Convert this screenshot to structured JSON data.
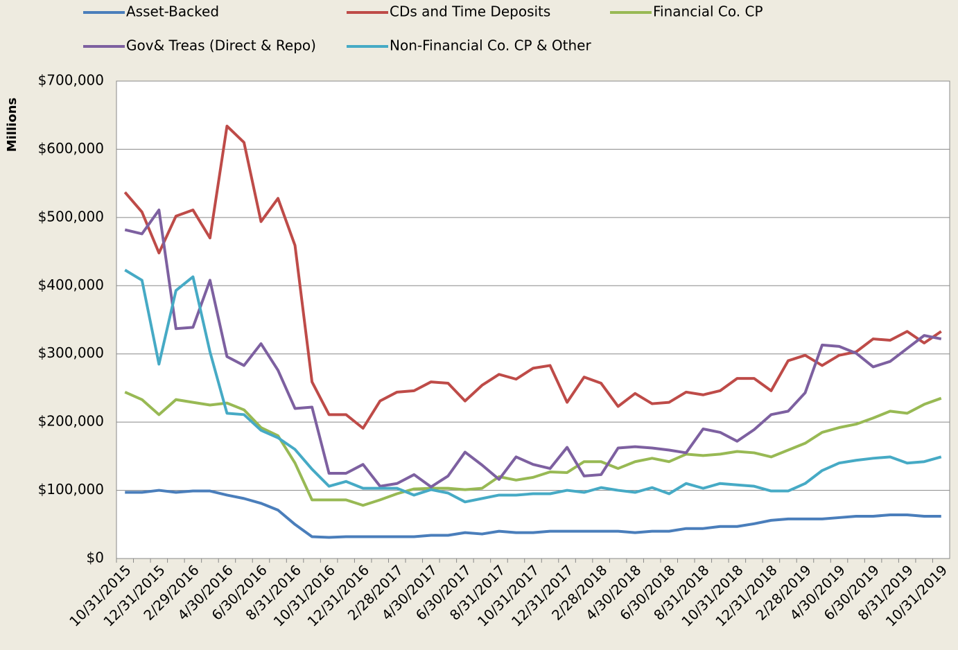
{
  "chart_data": {
    "type": "line",
    "y_label": "Millions",
    "categories": [
      "10/31/2015",
      null,
      "12/31/2015",
      null,
      "2/29/2016",
      null,
      "4/30/2016",
      null,
      "6/30/2016",
      null,
      "8/31/2016",
      null,
      "10/31/2016",
      null,
      "12/31/2016",
      null,
      "2/28/2017",
      null,
      "4/30/2017",
      null,
      "6/30/2017",
      null,
      "8/31/2017",
      null,
      "10/31/2017",
      null,
      "12/31/2017",
      null,
      "2/28/2018",
      null,
      "4/30/2018",
      null,
      "6/30/2018",
      null,
      "8/31/2018",
      null,
      "10/31/2018",
      null,
      "12/31/2018",
      null,
      "2/28/2019",
      null,
      "4/30/2019",
      null,
      "6/30/2019",
      null,
      "8/31/2019",
      null,
      "10/31/2019"
    ],
    "series": [
      {
        "name": "Asset-Backed",
        "color": "#4a7ebb",
        "values": [
          97000,
          97000,
          100000,
          97000,
          99000,
          99000,
          93000,
          88000,
          81000,
          71000,
          50000,
          32000,
          31000,
          32000,
          32000,
          32000,
          32000,
          32000,
          34000,
          34000,
          38000,
          36000,
          40000,
          38000,
          38000,
          40000,
          40000,
          40000,
          40000,
          40000,
          38000,
          40000,
          40000,
          44000,
          44000,
          47000,
          47000,
          51000,
          56000,
          58000,
          58000,
          58000,
          60000,
          62000,
          62000,
          64000,
          64000,
          62000,
          62000
        ]
      },
      {
        "name": "CDs and Time Deposits",
        "color": "#be4b48",
        "values": [
          537000,
          508000,
          448000,
          502000,
          511000,
          470000,
          634000,
          610000,
          494000,
          528000,
          459000,
          259000,
          211000,
          211000,
          191000,
          231000,
          244000,
          246000,
          259000,
          257000,
          231000,
          254000,
          270000,
          263000,
          279000,
          283000,
          229000,
          266000,
          257000,
          223000,
          242000,
          227000,
          229000,
          244000,
          240000,
          246000,
          264000,
          264000,
          246000,
          290000,
          298000,
          283000,
          298000,
          303000,
          322000,
          320000,
          333000,
          316000,
          333000
        ]
      },
      {
        "name": "Financial Co. CP",
        "color": "#98b954",
        "values": [
          244000,
          233000,
          211000,
          233000,
          229000,
          225000,
          228000,
          218000,
          192000,
          180000,
          140000,
          86000,
          86000,
          86000,
          78000,
          86000,
          95000,
          102000,
          103000,
          103000,
          101000,
          103000,
          120000,
          115000,
          119000,
          127000,
          126000,
          142000,
          142000,
          132000,
          142000,
          147000,
          142000,
          153000,
          151000,
          153000,
          157000,
          155000,
          149000,
          159000,
          169000,
          185000,
          192000,
          197000,
          206000,
          216000,
          213000,
          226000,
          235000
        ]
      },
      {
        "name": "Gov& Treas (Direct & Repo)",
        "color": "#7d60a0",
        "values": [
          482000,
          476000,
          511000,
          337000,
          339000,
          408000,
          296000,
          283000,
          315000,
          276000,
          220000,
          222000,
          125000,
          125000,
          138000,
          106000,
          110000,
          123000,
          105000,
          121000,
          156000,
          137000,
          116000,
          149000,
          138000,
          132000,
          163000,
          121000,
          123000,
          162000,
          164000,
          162000,
          159000,
          155000,
          190000,
          185000,
          172000,
          189000,
          211000,
          216000,
          243000,
          313000,
          311000,
          301000,
          281000,
          289000,
          308000,
          327000,
          322000
        ]
      },
      {
        "name": "Non-Financial Co. CP & Other",
        "color": "#46aac5",
        "values": [
          423000,
          408000,
          285000,
          393000,
          413000,
          303000,
          213000,
          211000,
          188000,
          177000,
          160000,
          131000,
          106000,
          113000,
          103000,
          103000,
          103000,
          93000,
          101000,
          96000,
          83000,
          88000,
          93000,
          93000,
          95000,
          95000,
          100000,
          97000,
          104000,
          100000,
          97000,
          104000,
          95000,
          110000,
          103000,
          110000,
          108000,
          106000,
          99000,
          99000,
          110000,
          129000,
          140000,
          144000,
          147000,
          149000,
          140000,
          142000,
          149000
        ]
      }
    ],
    "ylim": [
      0,
      700000
    ],
    "yticks": [
      {
        "value": 0,
        "label": "$0"
      },
      {
        "value": 100000,
        "label": "$100,000"
      },
      {
        "value": 200000,
        "label": "$200,000"
      },
      {
        "value": 300000,
        "label": "$300,000"
      },
      {
        "value": 400000,
        "label": "$400,000"
      },
      {
        "value": 500000,
        "label": "$500,000"
      },
      {
        "value": 600000,
        "label": "$600,000"
      },
      {
        "value": 700000,
        "label": "$700,000"
      }
    ],
    "grid": true
  }
}
